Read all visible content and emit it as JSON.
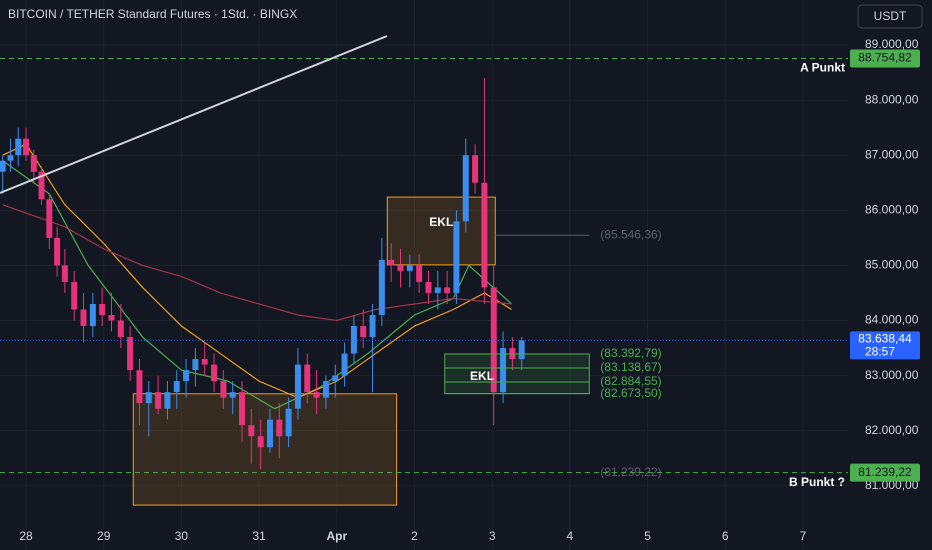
{
  "chart_data": {
    "type": "candlestick",
    "title": "BITCOIN / TETHER Standard Futures · 1Std. · BINGX",
    "currency": "USDT",
    "xlim": [
      -0.335,
      10.58
    ],
    "ylim": [
      79835,
      89817
    ],
    "xticks": [
      {
        "value": 0,
        "label": "28"
      },
      {
        "value": 1,
        "label": "29"
      },
      {
        "value": 2,
        "label": "30"
      },
      {
        "value": 3,
        "label": "31"
      },
      {
        "value": 4,
        "label": "Apr"
      },
      {
        "value": 5,
        "label": "2"
      },
      {
        "value": 6,
        "label": "3"
      },
      {
        "value": 7,
        "label": "4"
      },
      {
        "value": 8,
        "label": "5"
      },
      {
        "value": 9,
        "label": "6"
      },
      {
        "value": 10,
        "label": "7"
      }
    ],
    "yticks": [
      {
        "value": 89000,
        "label": "89.000,00"
      },
      {
        "value": 88000,
        "label": "88.000,00"
      },
      {
        "value": 87000,
        "label": "87.000,00"
      },
      {
        "value": 86000,
        "label": "86.000,00"
      },
      {
        "value": 85000,
        "label": "85.000,00"
      },
      {
        "value": 84000,
        "label": "84.000,00"
      },
      {
        "value": 83000,
        "label": "83.000,00"
      },
      {
        "value": 82000,
        "label": "82.000,00"
      },
      {
        "value": 81000,
        "label": "81.000,00"
      }
    ],
    "grid": true,
    "up_color": "#3b8ded",
    "down_color": "#e6337a",
    "x": [
      -0.3,
      -0.2,
      -0.1,
      0.0,
      0.1,
      0.2,
      0.3,
      0.4,
      0.5,
      0.62,
      0.74,
      0.86,
      0.98,
      1.1,
      1.22,
      1.34,
      1.46,
      1.58,
      1.7,
      1.82,
      1.94,
      2.06,
      2.18,
      2.3,
      2.42,
      2.54,
      2.66,
      2.78,
      2.9,
      3.02,
      3.14,
      3.26,
      3.38,
      3.5,
      3.62,
      3.74,
      3.86,
      3.98,
      4.1,
      4.22,
      4.34,
      4.46,
      4.58,
      4.7,
      4.82,
      4.94,
      5.06,
      5.18,
      5.3,
      5.42,
      5.54,
      5.66,
      5.78,
      5.9,
      6.02,
      6.14,
      6.26,
      6.38
    ],
    "open": [
      86700,
      86900,
      87000,
      87300,
      87000,
      86700,
      86200,
      85500,
      85000,
      84700,
      84200,
      83900,
      84300,
      84100,
      84000,
      83700,
      83100,
      82500,
      82700,
      82400,
      82700,
      82900,
      83100,
      83300,
      83200,
      82900,
      82600,
      82700,
      82100,
      81900,
      81700,
      82200,
      81900,
      82400,
      83200,
      82700,
      82600,
      82900,
      83000,
      83400,
      83900,
      83700,
      84100,
      85100,
      85000,
      84900,
      85000,
      84700,
      84500,
      84600,
      84500,
      85800,
      87000,
      86500,
      84600,
      82700,
      83500,
      83300
    ],
    "high": [
      87000,
      87300,
      87500,
      87500,
      87100,
      86800,
      86300,
      85700,
      85300,
      84900,
      84500,
      84500,
      84600,
      84500,
      84300,
      83900,
      83300,
      82900,
      83000,
      82900,
      83100,
      83300,
      83500,
      83600,
      83400,
      83100,
      82900,
      82900,
      82400,
      82200,
      82400,
      82500,
      82600,
      83500,
      83400,
      83100,
      83000,
      83200,
      83600,
      84100,
      84200,
      84300,
      85500,
      85400,
      85300,
      85200,
      85200,
      84900,
      84900,
      84900,
      86000,
      87300,
      87200,
      88400,
      85000,
      83800,
      83700,
      83700
    ],
    "low": [
      86300,
      86700,
      86800,
      86900,
      86500,
      86100,
      85300,
      84800,
      84500,
      84000,
      83600,
      83700,
      83900,
      83800,
      83500,
      82900,
      82100,
      81900,
      82300,
      82200,
      82400,
      82600,
      82800,
      83000,
      82700,
      82400,
      82300,
      81800,
      81400,
      81300,
      81600,
      81500,
      81700,
      82200,
      82500,
      82300,
      82400,
      82600,
      82800,
      83200,
      83500,
      82700,
      83900,
      84700,
      84600,
      84600,
      84500,
      84300,
      84200,
      84300,
      84300,
      85600,
      86300,
      84300,
      82100,
      82500,
      83100,
      83100
    ],
    "close": [
      86900,
      87000,
      87300,
      87000,
      86700,
      86200,
      85500,
      85000,
      84700,
      84200,
      83900,
      84300,
      84100,
      84000,
      83700,
      83100,
      82500,
      82700,
      82400,
      82700,
      82900,
      83100,
      83300,
      83200,
      82900,
      82600,
      82700,
      82100,
      81900,
      81700,
      82200,
      81900,
      82400,
      83200,
      82700,
      82600,
      82900,
      83000,
      83400,
      83900,
      83700,
      84100,
      85100,
      85000,
      84900,
      85000,
      84700,
      84500,
      84600,
      84500,
      85800,
      87000,
      86500,
      84600,
      82700,
      83500,
      83300,
      83638.44
    ],
    "moving_averages": [
      {
        "color": "#4caf50",
        "x": [
          -0.3,
          0.3,
          0.8,
          1.5,
          2.0,
          2.6,
          3.2,
          3.8,
          4.4,
          5.0,
          5.5,
          5.7,
          6.25
        ],
        "values": [
          86900,
          86300,
          85000,
          83700,
          83100,
          82900,
          82400,
          82800,
          83400,
          84100,
          84400,
          85000,
          84300
        ]
      },
      {
        "color": "#f59e20",
        "x": [
          -0.3,
          0.0,
          0.5,
          1.0,
          1.5,
          2.0,
          2.5,
          3.0,
          3.5,
          4.0,
          4.5,
          5.0,
          5.5,
          5.9,
          6.25
        ],
        "values": [
          87000,
          87200,
          86100,
          85400,
          84600,
          83900,
          83400,
          82900,
          82600,
          82900,
          83400,
          83900,
          84200,
          84500,
          84200
        ]
      },
      {
        "color": "#a3344a",
        "x": [
          -0.3,
          0.5,
          1.0,
          1.5,
          2.0,
          2.5,
          3.0,
          3.5,
          4.0,
          4.5,
          5.0,
          5.5,
          6.25
        ],
        "values": [
          86100,
          85700,
          85300,
          85000,
          84800,
          84500,
          84300,
          84100,
          84000,
          84200,
          84300,
          84400,
          84300
        ]
      }
    ],
    "zones": [
      {
        "x": [
          1.38,
          4.77
        ],
        "y": [
          80650,
          82670
        ],
        "color": "#f59e20"
      },
      {
        "x": [
          4.65,
          6.04
        ],
        "y": [
          85010,
          86240
        ],
        "color": "#f59e20",
        "label": "EKL"
      },
      {
        "x": [
          5.39,
          7.25
        ],
        "y": [
          82673.5,
          83392.79
        ],
        "color": "#4caf50",
        "label": "EKL"
      }
    ],
    "levels": [
      {
        "value": 85546.36,
        "label": "(85.546,36)",
        "color": "#5d606b"
      },
      {
        "value": 83392.79,
        "label": "(83.392,79)",
        "color": "#4caf50"
      },
      {
        "value": 83138.67,
        "label": "(83.138,67)",
        "color": "#4caf50"
      },
      {
        "value": 82884.55,
        "label": "(82.884,55)",
        "color": "#4caf50"
      },
      {
        "value": 82673.5,
        "label": "(82.673,50)",
        "color": "#4caf50"
      },
      {
        "value": 81239.22,
        "label": "(81.239,22)",
        "color": "#5d606b"
      }
    ],
    "price_lines": [
      {
        "value": 88754.82,
        "label": "88.754,82",
        "name": "A Punkt",
        "color": "#4caf50"
      },
      {
        "value": 81239.22,
        "label": "81.239,22",
        "name": "B Punkt ?",
        "color": "#4caf50"
      }
    ],
    "last_price": {
      "value": 83638.44,
      "label": "83.638,44",
      "countdown": "28:57",
      "color": "#2962ff"
    }
  }
}
